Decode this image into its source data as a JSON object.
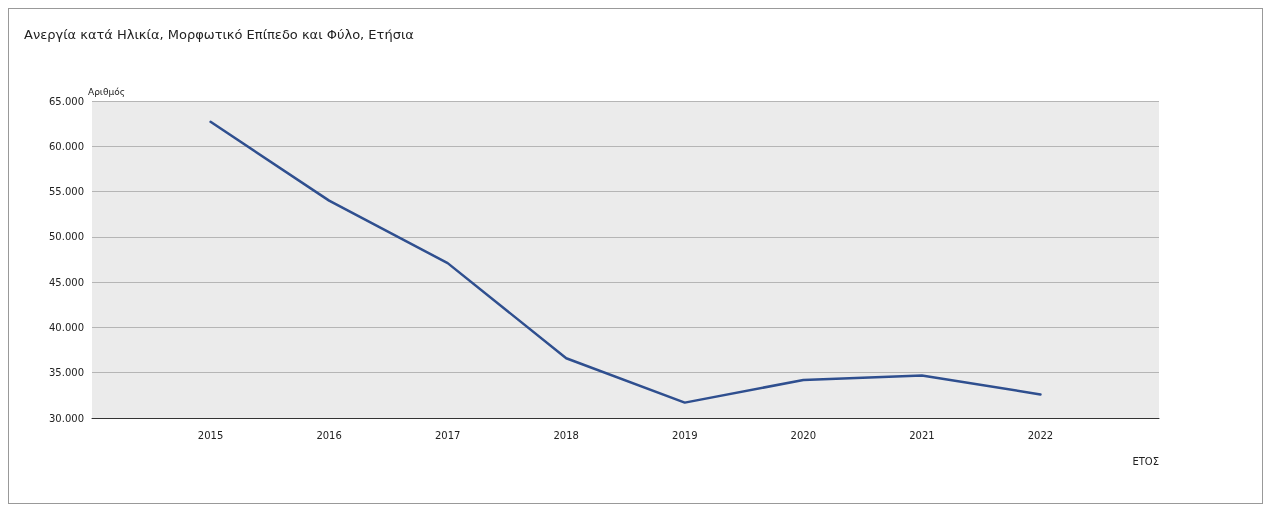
{
  "chart_data": {
    "type": "line",
    "title": "Ανεργία κατά Ηλικία, Μορφωτικό Επίπεδο και Φύλο, Ετήσια",
    "ylabel": "Αριθμός",
    "xlabel": "ΕΤΟΣ",
    "x": [
      2015,
      2016,
      2017,
      2018,
      2019,
      2020,
      2021,
      2022
    ],
    "series": [
      {
        "color": "#2f4f8f",
        "values": [
          62700,
          54000,
          47100,
          36600,
          31700,
          34200,
          34700,
          32600
        ]
      }
    ],
    "xlim": [
      2014,
      2023
    ],
    "xticks": [
      2015,
      2016,
      2017,
      2018,
      2019,
      2020,
      2021,
      2022
    ],
    "ylim": [
      30000,
      65000
    ],
    "yticks": [
      {
        "value": 30000,
        "label": "30.000"
      },
      {
        "value": 35000,
        "label": "35.000"
      },
      {
        "value": 40000,
        "label": "40.000"
      },
      {
        "value": 45000,
        "label": "45.000"
      },
      {
        "value": 50000,
        "label": "50.000"
      },
      {
        "value": 55000,
        "label": "55.000"
      },
      {
        "value": 60000,
        "label": "60.000"
      },
      {
        "value": 65000,
        "label": "65.000"
      }
    ],
    "grid": "y",
    "marker": "none",
    "line_style": "solid"
  }
}
